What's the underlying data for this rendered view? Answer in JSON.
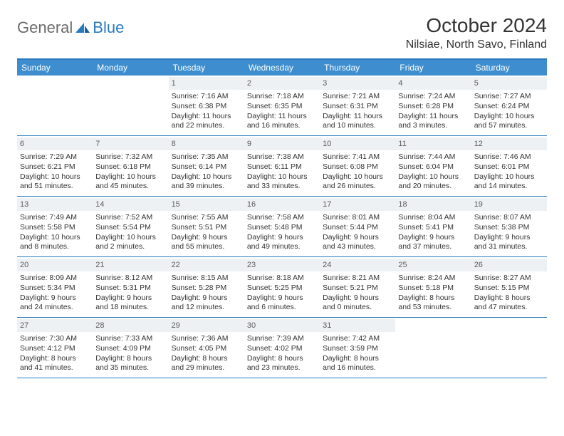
{
  "brand": {
    "general": "General",
    "blue": "Blue"
  },
  "title": "October 2024",
  "location": "Nilsiae, North Savo, Finland",
  "colors": {
    "accent": "#2a7ac0",
    "header_bg": "#3e8ecf",
    "daynum_bg": "#eef1f3",
    "text": "#333333",
    "logo_gray": "#6b6b6b"
  },
  "day_headers": [
    "Sunday",
    "Monday",
    "Tuesday",
    "Wednesday",
    "Thursday",
    "Friday",
    "Saturday"
  ],
  "weeks": [
    [
      null,
      null,
      {
        "n": "1",
        "sr": "Sunrise: 7:16 AM",
        "ss": "Sunset: 6:38 PM",
        "d1": "Daylight: 11 hours",
        "d2": "and 22 minutes."
      },
      {
        "n": "2",
        "sr": "Sunrise: 7:18 AM",
        "ss": "Sunset: 6:35 PM",
        "d1": "Daylight: 11 hours",
        "d2": "and 16 minutes."
      },
      {
        "n": "3",
        "sr": "Sunrise: 7:21 AM",
        "ss": "Sunset: 6:31 PM",
        "d1": "Daylight: 11 hours",
        "d2": "and 10 minutes."
      },
      {
        "n": "4",
        "sr": "Sunrise: 7:24 AM",
        "ss": "Sunset: 6:28 PM",
        "d1": "Daylight: 11 hours",
        "d2": "and 3 minutes."
      },
      {
        "n": "5",
        "sr": "Sunrise: 7:27 AM",
        "ss": "Sunset: 6:24 PM",
        "d1": "Daylight: 10 hours",
        "d2": "and 57 minutes."
      }
    ],
    [
      {
        "n": "6",
        "sr": "Sunrise: 7:29 AM",
        "ss": "Sunset: 6:21 PM",
        "d1": "Daylight: 10 hours",
        "d2": "and 51 minutes."
      },
      {
        "n": "7",
        "sr": "Sunrise: 7:32 AM",
        "ss": "Sunset: 6:18 PM",
        "d1": "Daylight: 10 hours",
        "d2": "and 45 minutes."
      },
      {
        "n": "8",
        "sr": "Sunrise: 7:35 AM",
        "ss": "Sunset: 6:14 PM",
        "d1": "Daylight: 10 hours",
        "d2": "and 39 minutes."
      },
      {
        "n": "9",
        "sr": "Sunrise: 7:38 AM",
        "ss": "Sunset: 6:11 PM",
        "d1": "Daylight: 10 hours",
        "d2": "and 33 minutes."
      },
      {
        "n": "10",
        "sr": "Sunrise: 7:41 AM",
        "ss": "Sunset: 6:08 PM",
        "d1": "Daylight: 10 hours",
        "d2": "and 26 minutes."
      },
      {
        "n": "11",
        "sr": "Sunrise: 7:44 AM",
        "ss": "Sunset: 6:04 PM",
        "d1": "Daylight: 10 hours",
        "d2": "and 20 minutes."
      },
      {
        "n": "12",
        "sr": "Sunrise: 7:46 AM",
        "ss": "Sunset: 6:01 PM",
        "d1": "Daylight: 10 hours",
        "d2": "and 14 minutes."
      }
    ],
    [
      {
        "n": "13",
        "sr": "Sunrise: 7:49 AM",
        "ss": "Sunset: 5:58 PM",
        "d1": "Daylight: 10 hours",
        "d2": "and 8 minutes."
      },
      {
        "n": "14",
        "sr": "Sunrise: 7:52 AM",
        "ss": "Sunset: 5:54 PM",
        "d1": "Daylight: 10 hours",
        "d2": "and 2 minutes."
      },
      {
        "n": "15",
        "sr": "Sunrise: 7:55 AM",
        "ss": "Sunset: 5:51 PM",
        "d1": "Daylight: 9 hours",
        "d2": "and 55 minutes."
      },
      {
        "n": "16",
        "sr": "Sunrise: 7:58 AM",
        "ss": "Sunset: 5:48 PM",
        "d1": "Daylight: 9 hours",
        "d2": "and 49 minutes."
      },
      {
        "n": "17",
        "sr": "Sunrise: 8:01 AM",
        "ss": "Sunset: 5:44 PM",
        "d1": "Daylight: 9 hours",
        "d2": "and 43 minutes."
      },
      {
        "n": "18",
        "sr": "Sunrise: 8:04 AM",
        "ss": "Sunset: 5:41 PM",
        "d1": "Daylight: 9 hours",
        "d2": "and 37 minutes."
      },
      {
        "n": "19",
        "sr": "Sunrise: 8:07 AM",
        "ss": "Sunset: 5:38 PM",
        "d1": "Daylight: 9 hours",
        "d2": "and 31 minutes."
      }
    ],
    [
      {
        "n": "20",
        "sr": "Sunrise: 8:09 AM",
        "ss": "Sunset: 5:34 PM",
        "d1": "Daylight: 9 hours",
        "d2": "and 24 minutes."
      },
      {
        "n": "21",
        "sr": "Sunrise: 8:12 AM",
        "ss": "Sunset: 5:31 PM",
        "d1": "Daylight: 9 hours",
        "d2": "and 18 minutes."
      },
      {
        "n": "22",
        "sr": "Sunrise: 8:15 AM",
        "ss": "Sunset: 5:28 PM",
        "d1": "Daylight: 9 hours",
        "d2": "and 12 minutes."
      },
      {
        "n": "23",
        "sr": "Sunrise: 8:18 AM",
        "ss": "Sunset: 5:25 PM",
        "d1": "Daylight: 9 hours",
        "d2": "and 6 minutes."
      },
      {
        "n": "24",
        "sr": "Sunrise: 8:21 AM",
        "ss": "Sunset: 5:21 PM",
        "d1": "Daylight: 9 hours",
        "d2": "and 0 minutes."
      },
      {
        "n": "25",
        "sr": "Sunrise: 8:24 AM",
        "ss": "Sunset: 5:18 PM",
        "d1": "Daylight: 8 hours",
        "d2": "and 53 minutes."
      },
      {
        "n": "26",
        "sr": "Sunrise: 8:27 AM",
        "ss": "Sunset: 5:15 PM",
        "d1": "Daylight: 8 hours",
        "d2": "and 47 minutes."
      }
    ],
    [
      {
        "n": "27",
        "sr": "Sunrise: 7:30 AM",
        "ss": "Sunset: 4:12 PM",
        "d1": "Daylight: 8 hours",
        "d2": "and 41 minutes."
      },
      {
        "n": "28",
        "sr": "Sunrise: 7:33 AM",
        "ss": "Sunset: 4:09 PM",
        "d1": "Daylight: 8 hours",
        "d2": "and 35 minutes."
      },
      {
        "n": "29",
        "sr": "Sunrise: 7:36 AM",
        "ss": "Sunset: 4:05 PM",
        "d1": "Daylight: 8 hours",
        "d2": "and 29 minutes."
      },
      {
        "n": "30",
        "sr": "Sunrise: 7:39 AM",
        "ss": "Sunset: 4:02 PM",
        "d1": "Daylight: 8 hours",
        "d2": "and 23 minutes."
      },
      {
        "n": "31",
        "sr": "Sunrise: 7:42 AM",
        "ss": "Sunset: 3:59 PM",
        "d1": "Daylight: 8 hours",
        "d2": "and 16 minutes."
      },
      null,
      null
    ]
  ]
}
